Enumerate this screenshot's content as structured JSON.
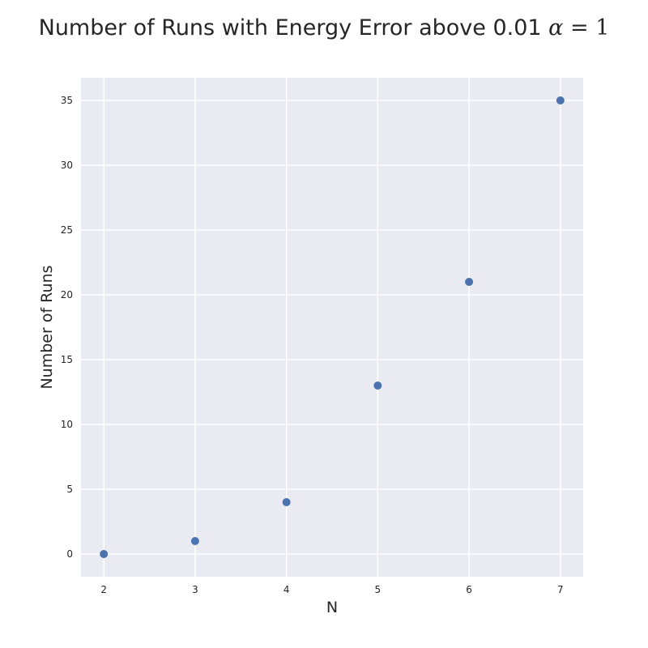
{
  "chart_data": {
    "type": "scatter",
    "title": "Number of Runs with Energy Error above 0.01",
    "title_math": {
      "symbol": "α",
      "relation": " = ",
      "value": "1"
    },
    "xlabel": "N",
    "ylabel": "Number of Runs",
    "x": [
      2,
      3,
      4,
      5,
      6,
      7
    ],
    "y": [
      0,
      1,
      4,
      13,
      21,
      35
    ],
    "xlim": [
      1.75,
      7.25
    ],
    "ylim": [
      -1.75,
      36.75
    ],
    "xticks": [
      2,
      3,
      4,
      5,
      6,
      7
    ],
    "yticks": [
      0,
      5,
      10,
      15,
      20,
      25,
      30,
      35
    ],
    "grid": true,
    "style": "seaborn-darkgrid",
    "colors": {
      "plot_background": "#EAEAF2",
      "grid": "#FFFFFF",
      "marker": "#4C72B0",
      "text": "#262626"
    }
  }
}
